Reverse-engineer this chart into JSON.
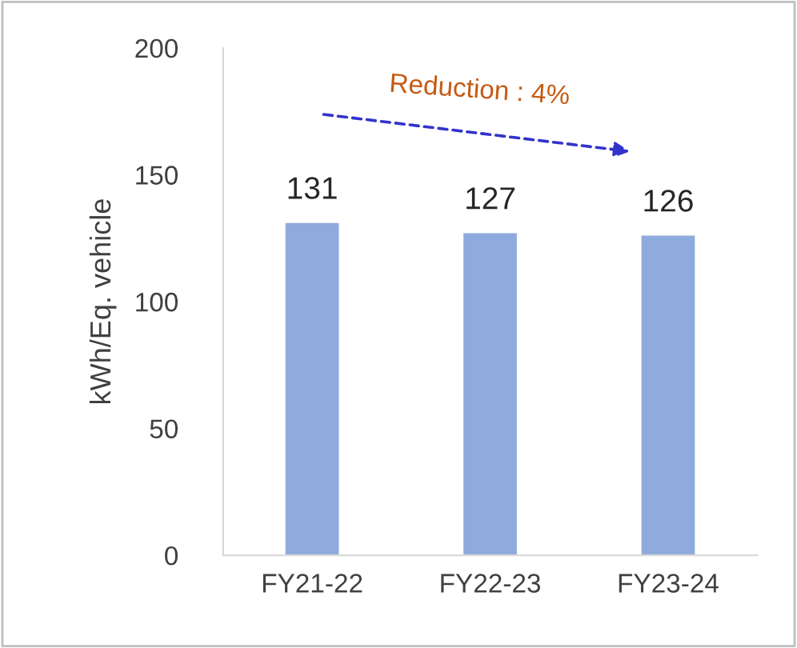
{
  "chart_data": {
    "type": "bar",
    "ylabel": "kWh/Eq. vehicle",
    "categories": [
      "FY21-22",
      "FY22-23",
      "FY23-24"
    ],
    "values": [
      131,
      127,
      126
    ],
    "color": "#8faadc",
    "ylim": [
      0,
      200
    ],
    "yticks": [
      0,
      50,
      100,
      150,
      200
    ],
    "grid": false,
    "data_labels": true,
    "annotations": [
      "Reduction : 4%"
    ]
  }
}
